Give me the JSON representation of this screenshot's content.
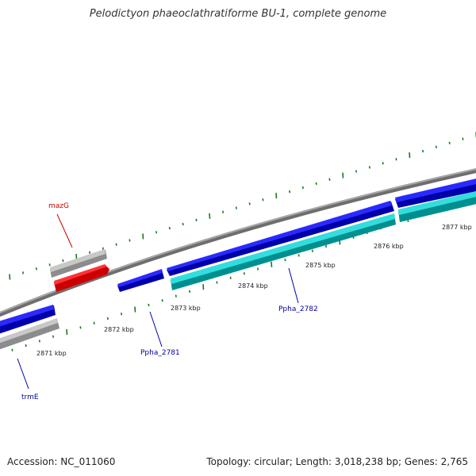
{
  "title": "Pelodictyon phaeoclathratiforme BU-1, complete genome",
  "footer": {
    "accession": "Accession: NC_011060",
    "summary": "Topology: circular; Length: 3,018,238 bp; Genes: 2,765"
  },
  "colors": {
    "backbone": "#808080",
    "tick": "#1a7a1a",
    "gene_blue": "#0000ee",
    "gene_cyan": "#22cccc",
    "gene_gray": "#bbbbbb",
    "gene_red": "#ff0000",
    "label_blue": "#0000aa",
    "label_red": "#cc0000"
  },
  "scale_labels": [
    "2871 kbp",
    "2872 kbp",
    "2873 kbp",
    "2874 kbp",
    "2875 kbp",
    "2876 kbp",
    "2877 kbp"
  ],
  "gene_labels": [
    {
      "text": "mazG",
      "color": "red"
    },
    {
      "text": "Ppha_2781",
      "color": "blue"
    },
    {
      "text": "Ppha_2782",
      "color": "blue"
    },
    {
      "text": "trmE",
      "color": "blue"
    }
  ]
}
